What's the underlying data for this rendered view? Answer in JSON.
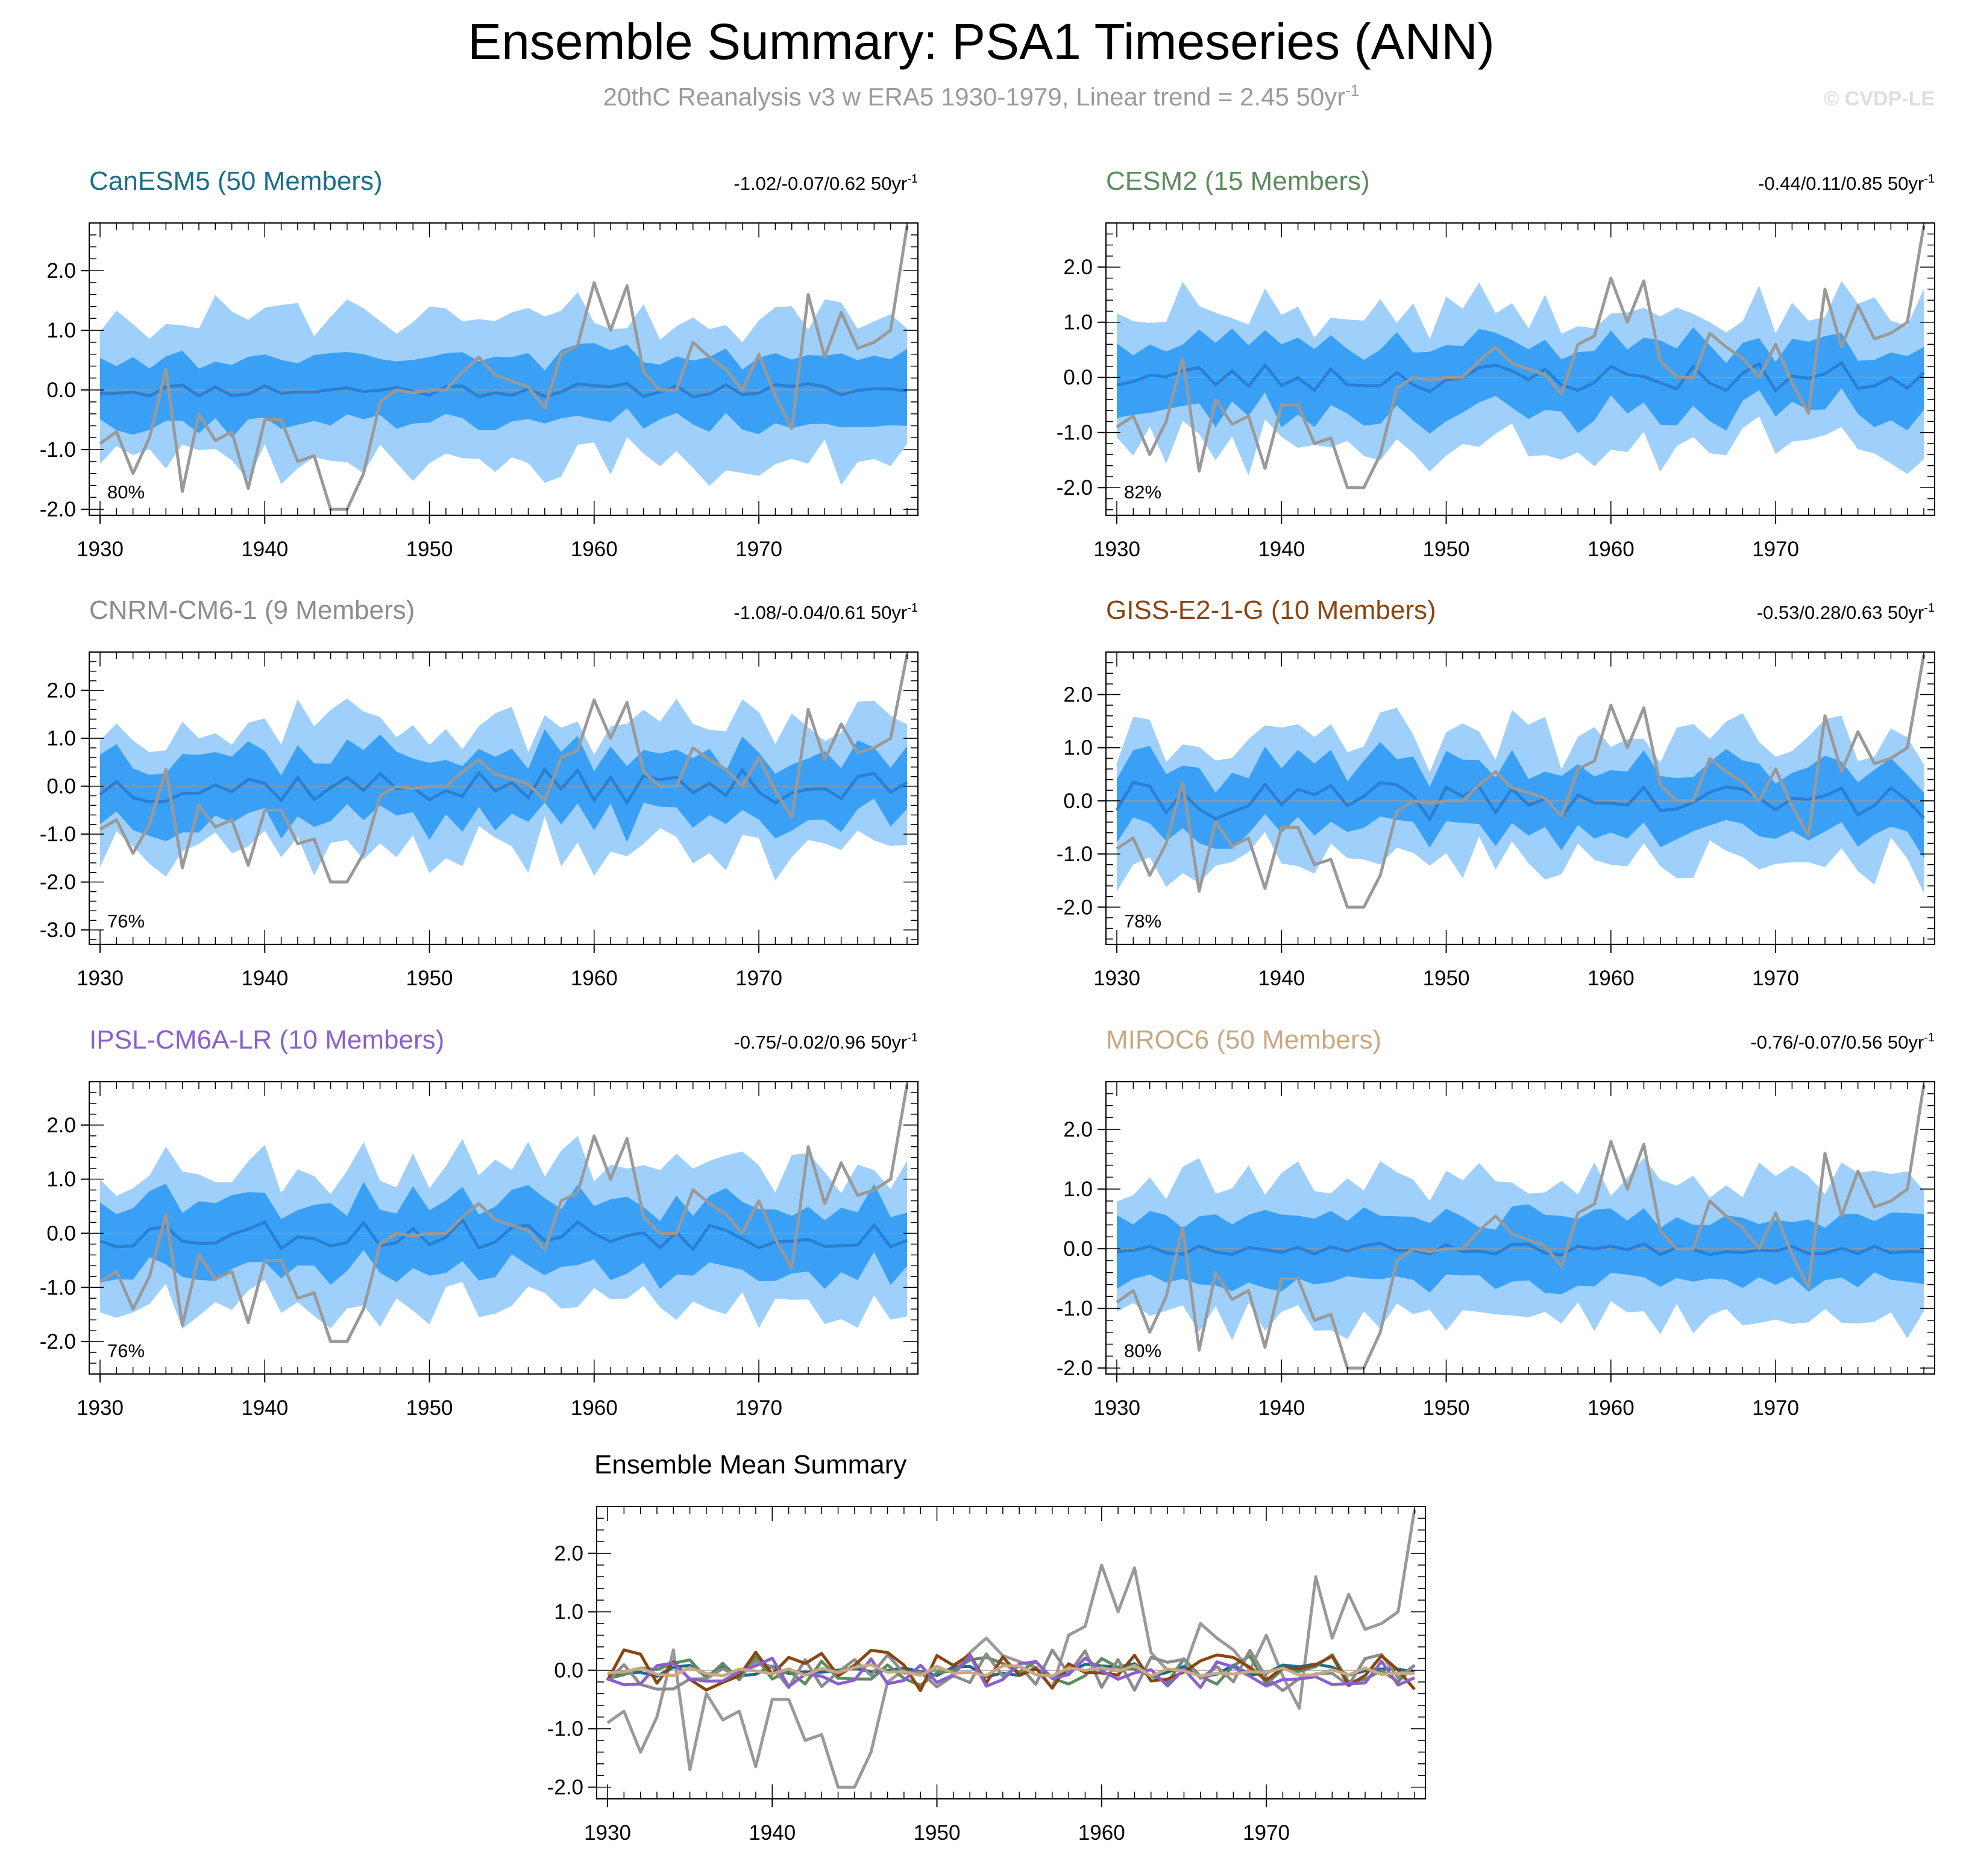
{
  "header": {
    "title": "Ensemble Summary: PSA1 Timeseries (ANN)",
    "subtitle": "20thC Reanalysis v3 w ERA5 1930-1979, Linear trend = 2.45 50yr",
    "subtitle_sup": "-1",
    "watermark": "© CVDP-LE"
  },
  "chart_data": {
    "type": "line",
    "years": [
      1930,
      1931,
      1932,
      1933,
      1934,
      1935,
      1936,
      1937,
      1938,
      1939,
      1940,
      1941,
      1942,
      1943,
      1944,
      1945,
      1946,
      1947,
      1948,
      1949,
      1950,
      1951,
      1952,
      1953,
      1954,
      1955,
      1956,
      1957,
      1958,
      1959,
      1960,
      1961,
      1962,
      1963,
      1964,
      1965,
      1966,
      1967,
      1968,
      1969,
      1970,
      1971,
      1972,
      1973,
      1974,
      1975,
      1976,
      1977,
      1978,
      1979
    ],
    "observations": {
      "name": "20thC Reanalysis v3 w ERA5",
      "color": "#999999",
      "values": [
        -0.9,
        -0.7,
        -1.4,
        -0.8,
        0.35,
        -1.7,
        -0.4,
        -0.85,
        -0.7,
        -1.65,
        -0.5,
        -0.5,
        -1.2,
        -1.1,
        -2.0,
        -2.0,
        -1.4,
        -0.2,
        0.0,
        -0.05,
        0.0,
        0.0,
        0.3,
        0.55,
        0.25,
        0.15,
        0.05,
        -0.3,
        0.6,
        0.75,
        1.8,
        1.0,
        1.75,
        0.3,
        0.0,
        0.0,
        0.8,
        0.55,
        0.35,
        0.0,
        0.6,
        -0.1,
        -0.65,
        1.6,
        0.55,
        1.3,
        0.7,
        0.8,
        1.0,
        2.75
      ]
    },
    "x_ticks": [
      1930,
      1940,
      1950,
      1960,
      1970
    ],
    "panels": [
      {
        "name": "CanESM5",
        "title": "CanESM5 (50 Members)",
        "color": "#1a6e8c",
        "trend": "-1.02/-0.07/0.62 50yr",
        "trend_sup": "-1",
        "pct": "80%",
        "ylim": [
          -2.1,
          2.8
        ],
        "y_ticks": [
          2.0,
          1.0,
          0.0,
          -1.0,
          -2.0
        ],
        "y_tick_labels": [
          "2.0",
          "1.0",
          "0.0",
          "-1.0",
          "-2.0"
        ],
        "band_half_outer": 1.15,
        "band_half_inner": 0.55,
        "seed": 11,
        "mean_amp": 0.12
      },
      {
        "name": "CESM2",
        "title": "CESM2 (15 Members)",
        "color": "#5e8b60",
        "trend": "-0.44/0.11/0.85 50yr",
        "trend_sup": "-1",
        "pct": "82%",
        "ylim": [
          -2.5,
          2.8
        ],
        "y_ticks": [
          2.0,
          1.0,
          0.0,
          -1.0,
          -2.0
        ],
        "y_tick_labels": [
          "2.0",
          "1.0",
          "0.0",
          "-1.0",
          "-2.0"
        ],
        "band_half_outer": 1.2,
        "band_half_inner": 0.6,
        "seed": 23,
        "mean_amp": 0.28
      },
      {
        "name": "CNRM-CM6-1",
        "title": "CNRM-CM6-1 (9 Members)",
        "color": "#8c8c8c",
        "trend": "-1.08/-0.04/0.61 50yr",
        "trend_sup": "-1",
        "pct": "76%",
        "ylim": [
          -3.3,
          2.8
        ],
        "y_ticks": [
          2.0,
          1.0,
          0.0,
          -1.0,
          -2.0,
          -3.0
        ],
        "y_tick_labels": [
          "2.0",
          "1.0",
          "0.0",
          "-1.0",
          "-2.0",
          "-3.0"
        ],
        "band_half_outer": 1.25,
        "band_half_inner": 0.65,
        "seed": 37,
        "mean_amp": 0.35
      },
      {
        "name": "GISS-E2-1-G",
        "title": "GISS-E2-1-G (10 Members)",
        "color": "#8b4510",
        "trend": "-0.53/0.28/0.63 50yr",
        "trend_sup": "-1",
        "pct": "78%",
        "ylim": [
          -2.7,
          2.8
        ],
        "y_ticks": [
          2.0,
          1.0,
          0.0,
          -1.0,
          -2.0
        ],
        "y_tick_labels": [
          "2.0",
          "1.0",
          "0.0",
          "-1.0",
          "-2.0"
        ],
        "band_half_outer": 1.15,
        "band_half_inner": 0.6,
        "seed": 41,
        "mean_amp": 0.35
      },
      {
        "name": "IPSL-CM6A-LR",
        "title": "IPSL-CM6A-LR (10 Members)",
        "color": "#8a5fcf",
        "trend": "-0.75/-0.02/0.96 50yr",
        "trend_sup": "-1",
        "pct": "76%",
        "ylim": [
          -2.6,
          2.8
        ],
        "y_ticks": [
          2.0,
          1.0,
          0.0,
          -1.0,
          -2.0
        ],
        "y_tick_labels": [
          "2.0",
          "1.0",
          "0.0",
          "-1.0",
          "-2.0"
        ],
        "band_half_outer": 1.2,
        "band_half_inner": 0.62,
        "seed": 53,
        "mean_amp": 0.3
      },
      {
        "name": "MIROC6",
        "title": "MIROC6 (50 Members)",
        "color": "#c9a882",
        "trend": "-0.76/-0.07/0.56 50yr",
        "trend_sup": "-1",
        "pct": "80%",
        "ylim": [
          -2.1,
          2.8
        ],
        "y_ticks": [
          2.0,
          1.0,
          0.0,
          -1.0,
          -2.0
        ],
        "y_tick_labels": [
          "2.0",
          "1.0",
          "0.0",
          "-1.0",
          "-2.0"
        ],
        "band_half_outer": 1.1,
        "band_half_inner": 0.52,
        "seed": 67,
        "mean_amp": 0.1
      }
    ],
    "mean_summary": {
      "title": "Ensemble Mean Summary",
      "ylim": [
        -2.2,
        2.8
      ],
      "y_ticks": [
        2.0,
        1.0,
        0.0,
        -1.0,
        -2.0
      ],
      "y_tick_labels": [
        "2.0",
        "1.0",
        "0.0",
        "-1.0",
        "-2.0"
      ]
    },
    "band_colors": {
      "outer": "#9fd0fb",
      "inner": "#3aa0f5",
      "mean": "#2a7fd4",
      "zero": "#9a9a9a"
    }
  }
}
